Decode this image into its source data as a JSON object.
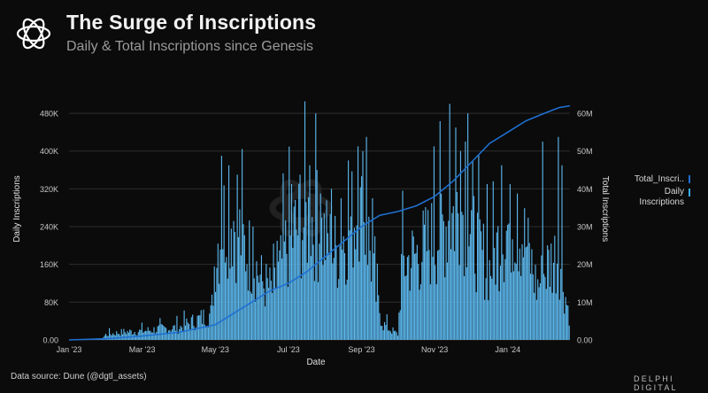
{
  "header": {
    "title": "The Surge of Inscriptions",
    "subtitle": "Daily & Total Inscriptions since Genesis"
  },
  "footer": {
    "source": "Data source: Dune (@dgtl_assets)",
    "brand": "DELPHI DIGITAL"
  },
  "colors": {
    "background": "#0b0b0b",
    "bar": "#5cb8ee",
    "line": "#1f6fd1",
    "grid": "#2c2c2c",
    "tick": "#c8c8c8"
  },
  "legend": [
    {
      "label": "Total_Inscri..",
      "type": "line"
    },
    {
      "label": "Daily Inscriptions",
      "type": "bar"
    }
  ],
  "chart_data": {
    "type": "bar",
    "title": "The Surge of Inscriptions",
    "xlabel": "Date",
    "ylabel": "Daily Inscriptions",
    "y2label": "Total Inscriptions",
    "ylim": [
      0,
      510000
    ],
    "y2lim": [
      0,
      63750000
    ],
    "yticks": [
      "0.00",
      "80K",
      "160K",
      "240K",
      "320K",
      "400K",
      "480K"
    ],
    "y2ticks": [
      "0.00",
      "10M",
      "20M",
      "30M",
      "40M",
      "50M",
      "60M"
    ],
    "xticks": [
      "Jan '23",
      "Mar '23",
      "May '23",
      "Jul '23",
      "Sep '23",
      "Nov '23",
      "Jan '24"
    ],
    "x_range_months": [
      0,
      13.7
    ],
    "xtick_months": [
      0,
      2,
      4,
      6,
      8,
      10,
      12
    ],
    "daily_profile": [
      [
        0.0,
        0
      ],
      [
        0.9,
        2000
      ],
      [
        1.0,
        12000
      ],
      [
        1.5,
        18000
      ],
      [
        2.0,
        20000
      ],
      [
        2.5,
        25000
      ],
      [
        3.0,
        28000
      ],
      [
        3.5,
        45000
      ],
      [
        3.9,
        60000
      ],
      [
        4.0,
        200000
      ],
      [
        4.3,
        290000
      ],
      [
        4.5,
        280000
      ],
      [
        4.8,
        210000
      ],
      [
        5.0,
        190000
      ],
      [
        5.3,
        130000
      ],
      [
        5.6,
        110000
      ],
      [
        5.9,
        200000
      ],
      [
        6.2,
        250000
      ],
      [
        6.6,
        280000
      ],
      [
        7.0,
        230000
      ],
      [
        7.3,
        200000
      ],
      [
        7.6,
        250000
      ],
      [
        7.9,
        300000
      ],
      [
        8.2,
        230000
      ],
      [
        8.4,
        100000
      ],
      [
        8.6,
        35000
      ],
      [
        8.9,
        18000
      ],
      [
        9.0,
        12000
      ],
      [
        9.1,
        170000
      ],
      [
        9.6,
        200000
      ],
      [
        10.0,
        230000
      ],
      [
        10.4,
        280000
      ],
      [
        10.8,
        300000
      ],
      [
        11.2,
        210000
      ],
      [
        11.5,
        160000
      ],
      [
        11.8,
        230000
      ],
      [
        12.2,
        280000
      ],
      [
        12.5,
        220000
      ],
      [
        12.8,
        120000
      ],
      [
        13.1,
        170000
      ],
      [
        13.4,
        200000
      ],
      [
        13.6,
        90000
      ],
      [
        13.7,
        60000
      ]
    ],
    "daily_spikes": [
      [
        4.18,
        390000
      ],
      [
        4.38,
        370000
      ],
      [
        4.62,
        350000
      ],
      [
        5.05,
        240000
      ],
      [
        5.7,
        210000
      ],
      [
        6.1,
        330000
      ],
      [
        6.32,
        350000
      ],
      [
        6.6,
        370000
      ],
      [
        6.78,
        360000
      ],
      [
        6.88,
        310000
      ],
      [
        7.18,
        320000
      ],
      [
        7.45,
        300000
      ],
      [
        7.65,
        380000
      ],
      [
        7.9,
        410000
      ],
      [
        8.05,
        400000
      ],
      [
        8.14,
        430000
      ],
      [
        8.3,
        300000
      ],
      [
        10.0,
        410000
      ],
      [
        10.4,
        500000
      ],
      [
        10.57,
        450000
      ],
      [
        10.72,
        400000
      ],
      [
        10.85,
        420000
      ],
      [
        10.92,
        480000
      ],
      [
        11.05,
        380000
      ],
      [
        11.45,
        330000
      ],
      [
        11.82,
        370000
      ],
      [
        12.08,
        330000
      ],
      [
        12.28,
        310000
      ],
      [
        12.95,
        420000
      ],
      [
        13.38,
        430000
      ],
      [
        13.5,
        370000
      ]
    ],
    "total_series": [
      [
        0.0,
        0
      ],
      [
        1.0,
        300000
      ],
      [
        2.0,
        1000000
      ],
      [
        3.0,
        2000000
      ],
      [
        4.0,
        4000000
      ],
      [
        4.5,
        7000000
      ],
      [
        5.0,
        10000000
      ],
      [
        5.5,
        13000000
      ],
      [
        6.0,
        15000000
      ],
      [
        6.5,
        18000000
      ],
      [
        7.0,
        22000000
      ],
      [
        7.5,
        26000000
      ],
      [
        8.0,
        30000000
      ],
      [
        8.5,
        33000000
      ],
      [
        9.0,
        34000000
      ],
      [
        9.5,
        35500000
      ],
      [
        10.0,
        38000000
      ],
      [
        10.5,
        42000000
      ],
      [
        11.0,
        47000000
      ],
      [
        11.5,
        52000000
      ],
      [
        12.0,
        55000000
      ],
      [
        12.5,
        58000000
      ],
      [
        13.0,
        60000000
      ],
      [
        13.4,
        61500000
      ],
      [
        13.7,
        62000000
      ]
    ]
  }
}
